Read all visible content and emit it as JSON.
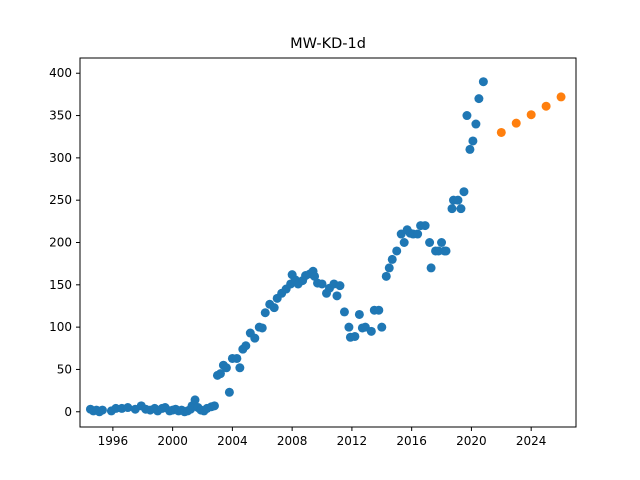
{
  "chart_data": {
    "type": "scatter",
    "title": "MW-KD-1d",
    "xlabel": "",
    "ylabel": "",
    "xlim": [
      1993.8,
      2027.0
    ],
    "ylim": [
      -18,
      418
    ],
    "grid": false,
    "x_ticks": [
      1996,
      2000,
      2004,
      2008,
      2012,
      2016,
      2020,
      2024
    ],
    "y_ticks": [
      0,
      50,
      100,
      150,
      200,
      250,
      300,
      350,
      400
    ],
    "colors": {
      "series_0": "#1f77b4",
      "series_1": "#ff7f0e"
    },
    "series": [
      {
        "points": [
          [
            1994.5,
            3
          ],
          [
            1994.7,
            1
          ],
          [
            1994.9,
            2
          ],
          [
            1995.1,
            0
          ],
          [
            1995.3,
            2
          ],
          [
            1995.9,
            1
          ],
          [
            1996.2,
            4
          ],
          [
            1996.6,
            4
          ],
          [
            1997.0,
            5
          ],
          [
            1997.5,
            3
          ],
          [
            1997.9,
            7
          ],
          [
            1998.2,
            3
          ],
          [
            1998.5,
            2
          ],
          [
            1998.8,
            4
          ],
          [
            1999.0,
            1
          ],
          [
            1999.3,
            4
          ],
          [
            1999.5,
            5
          ],
          [
            1999.8,
            1
          ],
          [
            2000.0,
            2
          ],
          [
            2000.2,
            3
          ],
          [
            2000.4,
            1
          ],
          [
            2000.6,
            2
          ],
          [
            2000.8,
            0
          ],
          [
            2001.0,
            1
          ],
          [
            2001.2,
            3
          ],
          [
            2001.3,
            7
          ],
          [
            2001.5,
            14
          ],
          [
            2001.7,
            5
          ],
          [
            2001.9,
            2
          ],
          [
            2002.1,
            1
          ],
          [
            2002.3,
            4
          ],
          [
            2002.6,
            6
          ],
          [
            2002.8,
            7
          ],
          [
            2003.0,
            43
          ],
          [
            2003.2,
            45
          ],
          [
            2003.4,
            55
          ],
          [
            2003.6,
            52
          ],
          [
            2003.8,
            23
          ],
          [
            2004.0,
            63
          ],
          [
            2004.3,
            63
          ],
          [
            2004.5,
            52
          ],
          [
            2004.7,
            74
          ],
          [
            2004.9,
            78
          ],
          [
            2005.2,
            93
          ],
          [
            2005.5,
            87
          ],
          [
            2005.8,
            100
          ],
          [
            2006.0,
            99
          ],
          [
            2006.2,
            117
          ],
          [
            2006.5,
            127
          ],
          [
            2006.8,
            123
          ],
          [
            2007.0,
            134
          ],
          [
            2007.3,
            140
          ],
          [
            2007.6,
            145
          ],
          [
            2007.9,
            151
          ],
          [
            2008.0,
            162
          ],
          [
            2008.2,
            156
          ],
          [
            2008.4,
            151
          ],
          [
            2008.7,
            155
          ],
          [
            2008.9,
            161
          ],
          [
            2009.2,
            163
          ],
          [
            2009.4,
            166
          ],
          [
            2009.5,
            160
          ],
          [
            2009.7,
            152
          ],
          [
            2010.0,
            151
          ],
          [
            2010.3,
            140
          ],
          [
            2010.5,
            146
          ],
          [
            2010.8,
            151
          ],
          [
            2011.0,
            137
          ],
          [
            2011.2,
            149
          ],
          [
            2011.5,
            118
          ],
          [
            2011.8,
            100
          ],
          [
            2011.9,
            88
          ],
          [
            2012.2,
            89
          ],
          [
            2012.5,
            115
          ],
          [
            2012.7,
            99
          ],
          [
            2012.9,
            100
          ],
          [
            2013.3,
            95
          ],
          [
            2013.5,
            120
          ],
          [
            2013.8,
            120
          ],
          [
            2014.0,
            100
          ],
          [
            2014.3,
            160
          ],
          [
            2014.5,
            170
          ],
          [
            2014.7,
            180
          ],
          [
            2015.0,
            190
          ],
          [
            2015.3,
            210
          ],
          [
            2015.5,
            200
          ],
          [
            2015.7,
            215
          ],
          [
            2015.9,
            211
          ],
          [
            2016.1,
            210
          ],
          [
            2016.4,
            210
          ],
          [
            2016.6,
            220
          ],
          [
            2016.9,
            220
          ],
          [
            2017.2,
            200
          ],
          [
            2017.3,
            170
          ],
          [
            2017.6,
            190
          ],
          [
            2017.8,
            190
          ],
          [
            2018.0,
            200
          ],
          [
            2018.2,
            190
          ],
          [
            2018.3,
            190
          ],
          [
            2018.7,
            240
          ],
          [
            2018.8,
            250
          ],
          [
            2019.1,
            250
          ],
          [
            2019.3,
            240
          ],
          [
            2019.5,
            260
          ],
          [
            2019.7,
            350
          ],
          [
            2019.9,
            310
          ],
          [
            2020.1,
            320
          ],
          [
            2020.3,
            340
          ],
          [
            2020.5,
            370
          ],
          [
            2020.8,
            390
          ]
        ]
      },
      {
        "points": [
          [
            2022,
            330
          ],
          [
            2023,
            341
          ],
          [
            2024,
            351
          ],
          [
            2025,
            361
          ],
          [
            2026,
            372
          ]
        ]
      }
    ]
  }
}
